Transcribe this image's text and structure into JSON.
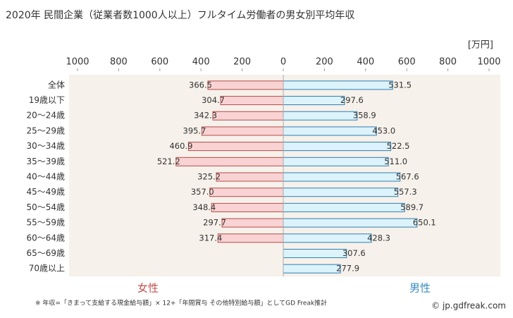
{
  "chart_data": {
    "type": "butterfly-bar",
    "title": "2020年 民間企業（従業者数1000人以上）フルタイム労働者の男女別平均年収",
    "unit": "[万円]",
    "categories": [
      "全体",
      "19歳以下",
      "20〜24歳",
      "25〜29歳",
      "30〜34歳",
      "35〜39歳",
      "40〜44歳",
      "45〜49歳",
      "50〜54歳",
      "55〜59歳",
      "60〜64歳",
      "65〜69歳",
      "70歳以上"
    ],
    "series": [
      {
        "name": "女性",
        "side": "left",
        "color": "#f9d3d3",
        "stroke": "#b54a4a",
        "text_color": "#c0504d",
        "values": [
          366.5,
          304.7,
          342.3,
          395.7,
          460.9,
          521.2,
          325.2,
          357.0,
          348.4,
          297.7,
          317.4,
          null,
          null
        ],
        "value_labels": [
          "366.5",
          "304.7",
          "342.3",
          "395.7",
          "460.9",
          "521.2",
          "325.2",
          "357.0",
          "348.4",
          "297.7",
          "317.4",
          null,
          null
        ]
      },
      {
        "name": "男性",
        "side": "right",
        "color": "#dcf3fb",
        "stroke": "#2f7fb5",
        "text_color": "#3a8bc0",
        "values": [
          531.5,
          297.6,
          358.9,
          453.0,
          522.5,
          511.0,
          567.6,
          557.3,
          589.7,
          650.1,
          428.3,
          307.6,
          277.9
        ],
        "value_labels": [
          "531.5",
          "297.6",
          "358.9",
          "453.0",
          "522.5",
          "511.0",
          "567.6",
          "557.3",
          "589.7",
          "650.1",
          "428.3",
          "307.6",
          "277.9"
        ]
      }
    ],
    "xlim": [
      -1000,
      1000
    ],
    "xticks": [
      {
        "value": -1000,
        "label": "1000"
      },
      {
        "value": -800,
        "label": "800"
      },
      {
        "value": -600,
        "label": "600"
      },
      {
        "value": -400,
        "label": "400"
      },
      {
        "value": -200,
        "label": "200"
      },
      0,
      200,
      400,
      600,
      800,
      1000
    ],
    "background": "#f6f1ea",
    "footnote": "※ 年収=「きまって支給する現金給与額」× 12+「年間賞与 その他特別給与額」としてGD Freak推計",
    "source": "© jp.gdfreak.com"
  }
}
